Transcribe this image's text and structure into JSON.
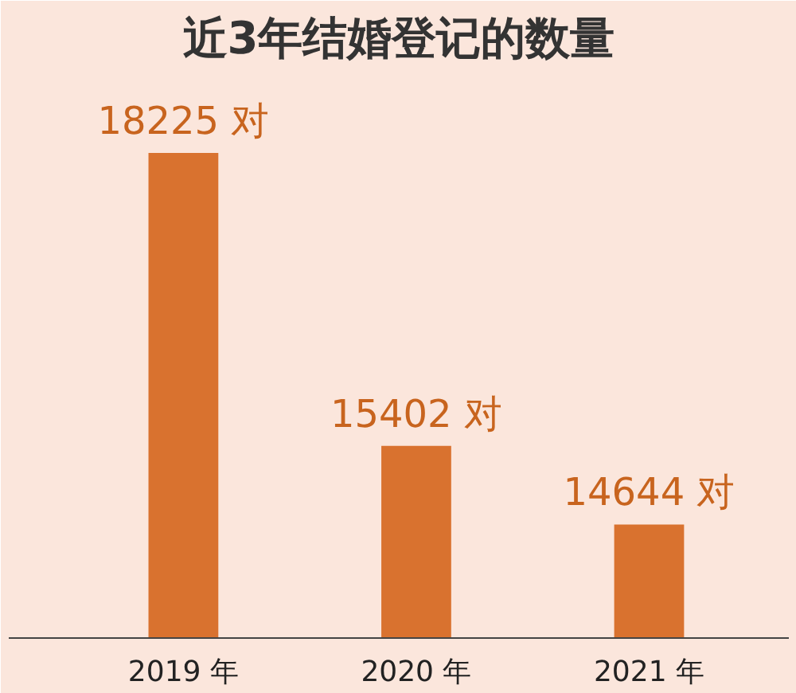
{
  "chart_data": {
    "type": "bar",
    "title": "近3年结婚登记的数量",
    "categories": [
      "2019 年",
      "2020 年",
      "2021 年"
    ],
    "values": [
      18225,
      15402,
      14644
    ],
    "value_labels": [
      "18225 对",
      "15402 对",
      "14644 对"
    ],
    "color": "#d9722f",
    "ylim": [
      13550,
      19000
    ],
    "tick_labels": "x",
    "grid": false
  }
}
